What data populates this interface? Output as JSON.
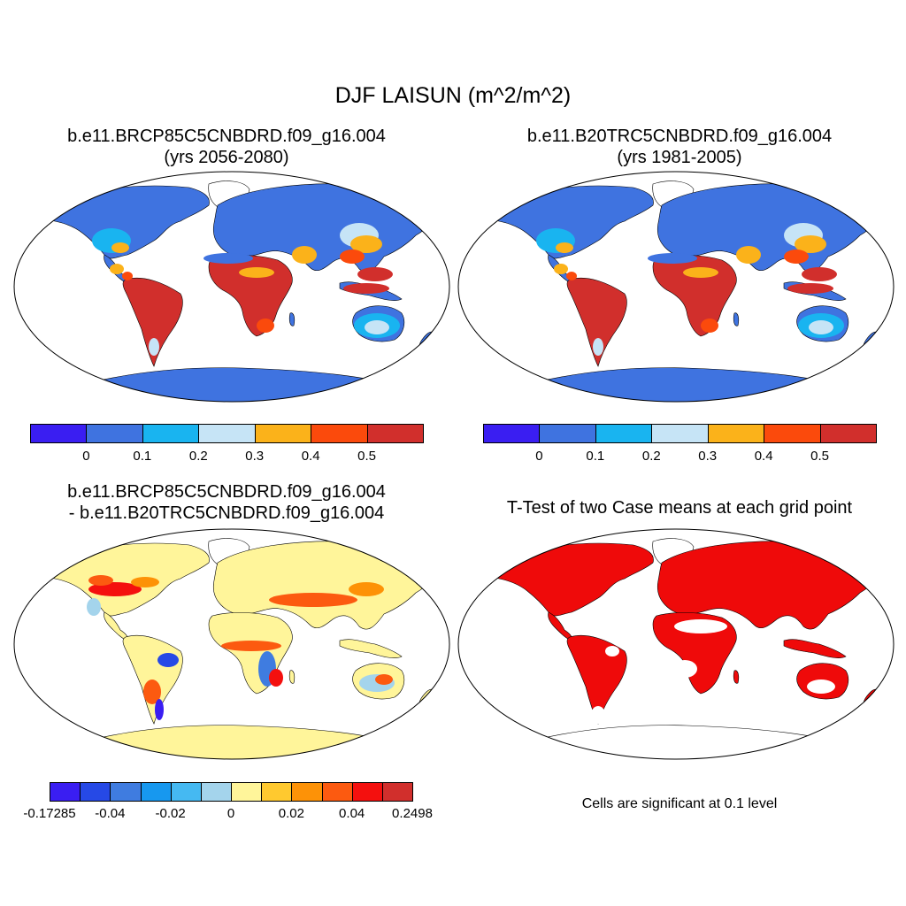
{
  "figure": {
    "title": "DJF LAISUN (m^2/m^2)",
    "panels": [
      {
        "title_line1": "b.e11.BRCP85C5CNBDRD.f09_g16.004",
        "title_line2": "(yrs 2056-2080)"
      },
      {
        "title_line1": "b.e11.B20TRC5CNBDRD.f09_g16.004",
        "title_line2": "(yrs 1981-2005)"
      },
      {
        "title_line1": "b.e11.BRCP85C5CNBDRD.f09_g16.004",
        "title_line2": "- b.e11.B20TRC5CNBDRD.f09_g16.004"
      },
      {
        "title_line1": "T-Test of two Case means at each grid point",
        "note": "Cells are significant at 0.1 level"
      }
    ]
  },
  "colorbars": {
    "absolute": {
      "colors": [
        "#3a1ef2",
        "#3f73e0",
        "#19b4f0",
        "#c6e4f6",
        "#fbb21a",
        "#fb4a0c",
        "#d12f2c"
      ],
      "labels": [
        "0",
        "0.1",
        "0.2",
        "0.3",
        "0.4",
        "0.5"
      ]
    },
    "difference": {
      "colors": [
        "#3a1ef2",
        "#2649e6",
        "#3f7ce0",
        "#1798ef",
        "#45b9f2",
        "#a4d4ec",
        "#fff59a",
        "#ffc92f",
        "#fd9207",
        "#fc5a10",
        "#f4100e",
        "#d12f2c"
      ],
      "labels": [
        "-0.17285",
        "-0.04",
        "-0.02",
        "0",
        "0.02",
        "0.04",
        "0.2498"
      ]
    }
  },
  "legend_colors": {
    "land_base_abs": "#3f73e0",
    "tropics_abs": "#d12f2c",
    "diff_base": "#fff59a",
    "significant": "#ef0a0a"
  }
}
